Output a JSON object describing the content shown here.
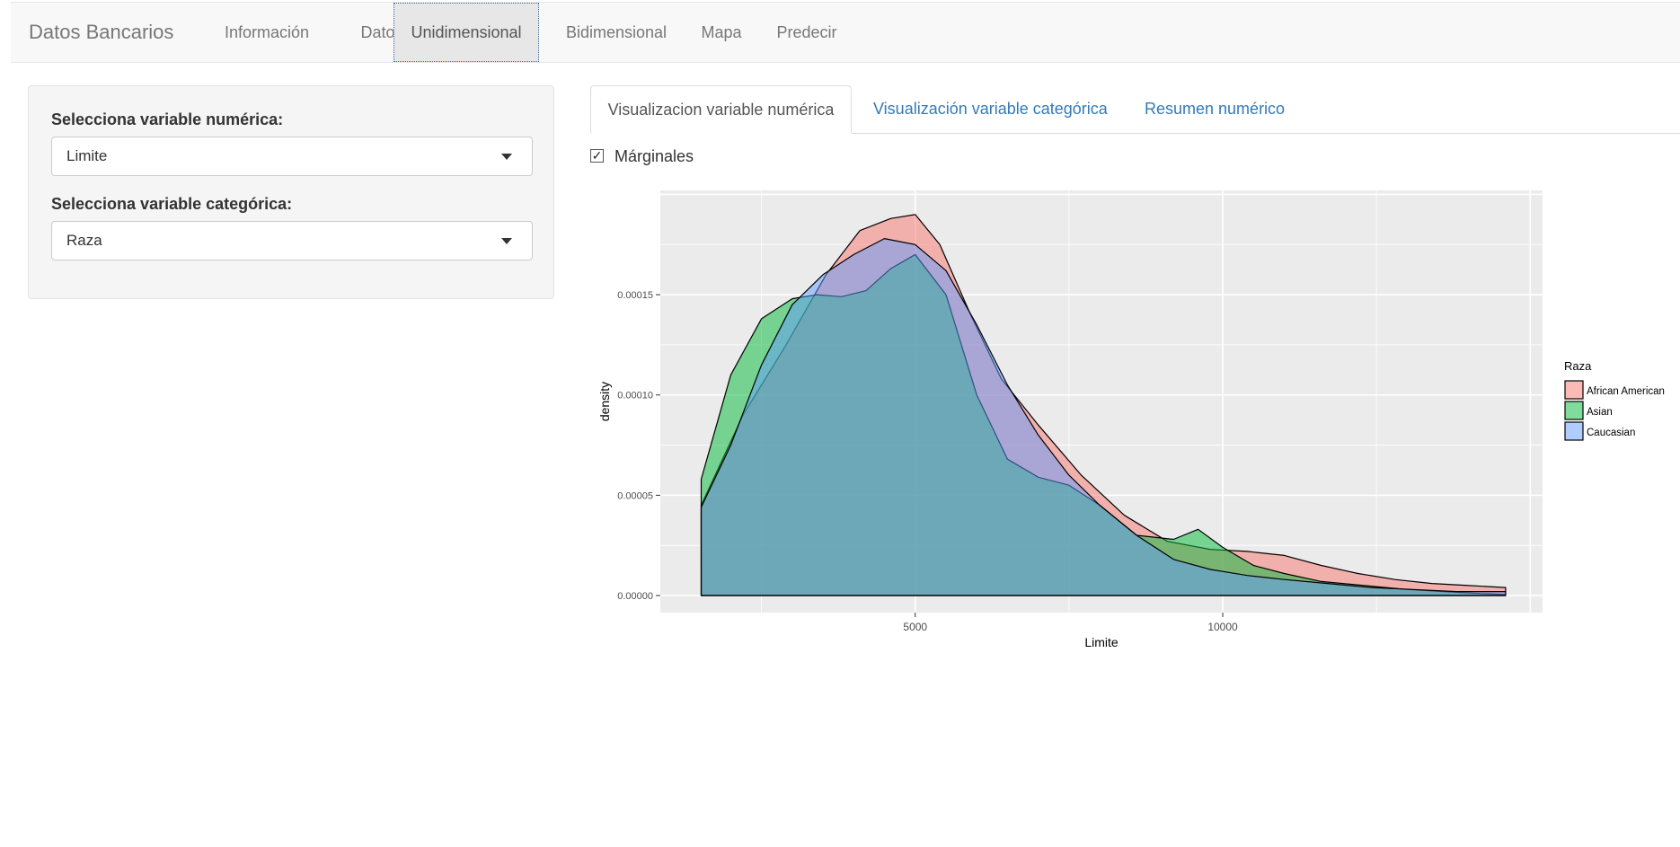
{
  "navbar": {
    "brand": "Datos Bancarios",
    "items": [
      {
        "label": "Información",
        "active": false
      },
      {
        "label": "Datos",
        "active": false
      },
      {
        "label": "Unidimensional",
        "active": true
      },
      {
        "label": "Bidimensional",
        "active": false
      },
      {
        "label": "Mapa",
        "active": false
      },
      {
        "label": "Predecir",
        "active": false
      }
    ]
  },
  "sidebar": {
    "numeric_label": "Selecciona variable numérica:",
    "numeric_value": "Limite",
    "categorical_label": "Selecciona variable categórica:",
    "categorical_value": "Raza"
  },
  "tabs": [
    {
      "label": "Visualizacion variable numérica",
      "active": true
    },
    {
      "label": "Visualización variable categórica",
      "active": false
    },
    {
      "label": "Resumen numérico",
      "active": false
    }
  ],
  "marginales": {
    "label": "Márginales",
    "checked": true
  },
  "colors": {
    "link": "#337ab7",
    "panel_bg": "#ebebeb"
  },
  "chart_data": {
    "type": "area",
    "xlabel": "Limite",
    "ylabel": "density",
    "xlim": [
      855,
      15200
    ],
    "ylim": [
      -8.5e-06,
      0.000202
    ],
    "xticks": [
      5000,
      10000
    ],
    "yticks": [
      0.0,
      5e-05,
      0.0001,
      0.00015
    ],
    "ytick_labels": [
      "0.00000",
      "0.00005",
      "0.00010",
      "0.00015"
    ],
    "grid": true,
    "legend_title": "Raza",
    "legend_position": "right",
    "series": [
      {
        "name": "African American",
        "color": "#f8766d",
        "x": [
          1520,
          2200,
          2900,
          3550,
          4100,
          4600,
          5000,
          5400,
          5900,
          6400,
          7000,
          7700,
          8400,
          9100,
          9800,
          10400,
          11000,
          11600,
          12200,
          12800,
          13400,
          14000,
          14600
        ],
        "y": [
          4.5e-05,
          9e-05,
          0.000125,
          0.00016,
          0.000182,
          0.000188,
          0.00019,
          0.000175,
          0.00014,
          0.000108,
          8.5e-05,
          6e-05,
          4e-05,
          2.7e-05,
          2.3e-05,
          2.2e-05,
          2e-05,
          1.5e-05,
          1.1e-05,
          8e-06,
          6e-06,
          5e-06,
          4e-06
        ]
      },
      {
        "name": "Asian",
        "color": "#00ba38",
        "x": [
          1520,
          2000,
          2500,
          3000,
          3400,
          3800,
          4200,
          4600,
          5000,
          5500,
          6000,
          6500,
          7000,
          7500,
          8000,
          8600,
          9200,
          9600,
          10000,
          10500,
          11000,
          11600,
          12300,
          13000,
          13600,
          14200,
          14600
        ],
        "y": [
          5.8e-05,
          0.00011,
          0.000138,
          0.000148,
          0.00015,
          0.000149,
          0.000152,
          0.000163,
          0.00017,
          0.00015,
          0.0001,
          6.8e-05,
          5.9e-05,
          5.5e-05,
          4.5e-05,
          3e-05,
          2.8e-05,
          3.3e-05,
          2.4e-05,
          1.5e-05,
          1.1e-05,
          7e-06,
          5e-06,
          3e-06,
          2e-06,
          1e-06,
          5e-07
        ]
      },
      {
        "name": "Caucasian",
        "color": "#619cff",
        "x": [
          1520,
          2000,
          2500,
          3000,
          3500,
          4000,
          4500,
          5000,
          5500,
          6000,
          6500,
          7000,
          7500,
          8000,
          8600,
          9200,
          9800,
          10400,
          11000,
          11700,
          12400,
          13100,
          13800,
          14600
        ],
        "y": [
          4.4e-05,
          7.5e-05,
          0.000115,
          0.000145,
          0.00016,
          0.00017,
          0.000178,
          0.000175,
          0.000162,
          0.000135,
          0.000105,
          8e-05,
          6e-05,
          4.5e-05,
          3e-05,
          1.8e-05,
          1.3e-05,
          1e-05,
          8e-06,
          6e-06,
          4e-06,
          3e-06,
          2e-06,
          2e-06
        ]
      }
    ]
  }
}
